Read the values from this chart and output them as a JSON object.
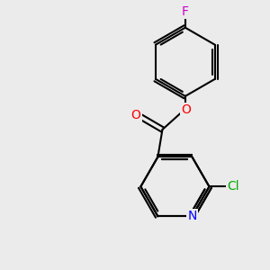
{
  "background_color": "#ebebeb",
  "bond_color": "#000000",
  "atom_colors": {
    "F": "#cc00cc",
    "O": "#ff0000",
    "N": "#0000ff",
    "Cl": "#00aa00"
  },
  "bond_width": 1.5,
  "dbo": 0.055,
  "figsize": [
    3.0,
    3.0
  ],
  "dpi": 100
}
